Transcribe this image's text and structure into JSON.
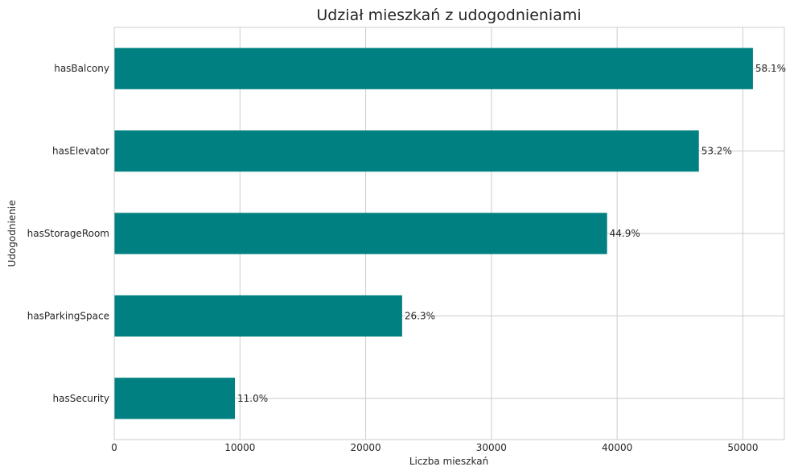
{
  "chart_data": {
    "type": "bar",
    "orientation": "horizontal",
    "title": "Udział mieszkań z udogodnieniami",
    "xlabel": "Liczba mieszkań",
    "ylabel": "Udogodnienie",
    "categories": [
      "hasBalcony",
      "hasElevator",
      "hasStorageRoom",
      "hasParkingSpace",
      "hasSecurity"
    ],
    "values": [
      50800,
      46500,
      39200,
      22900,
      9600
    ],
    "data_labels": [
      "58.1%",
      "53.2%",
      "44.9%",
      "26.3%",
      "11.0%"
    ],
    "xlim": [
      0,
      53300
    ],
    "xticks": [
      0,
      10000,
      20000,
      30000,
      40000,
      50000
    ],
    "xtick_labels": [
      "0",
      "10000",
      "20000",
      "30000",
      "40000",
      "50000"
    ],
    "grid": true,
    "bar_color": "#008080"
  }
}
